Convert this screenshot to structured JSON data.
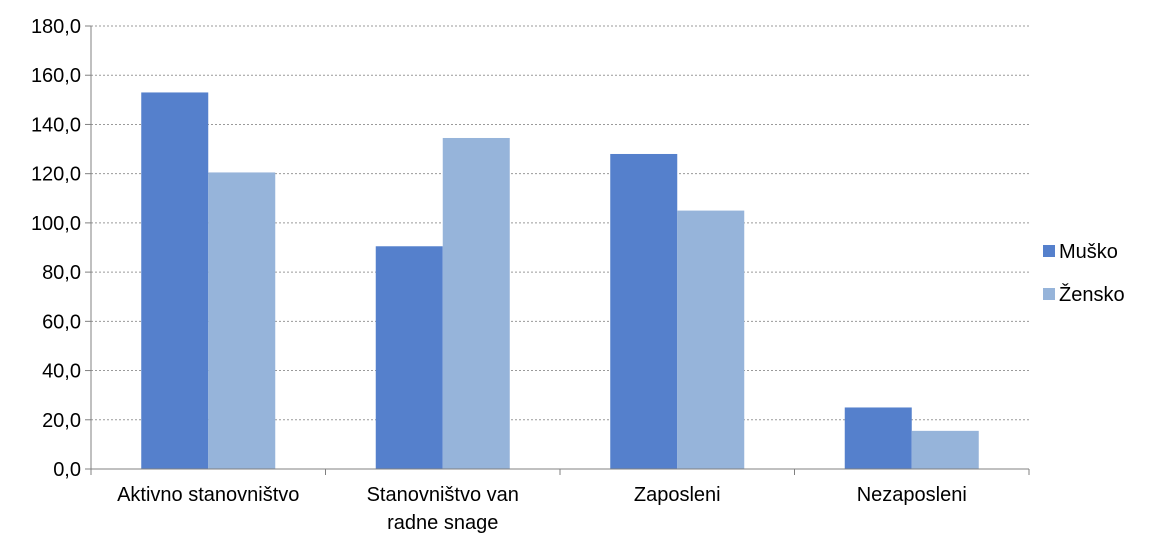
{
  "chart_data": {
    "type": "bar",
    "categories": [
      [
        "Aktivno stanovništvo"
      ],
      [
        "Stanovništvo van",
        "radne snage"
      ],
      [
        "Zaposleni"
      ],
      [
        "Nezaposleni"
      ]
    ],
    "series": [
      {
        "name": "Muško",
        "color": "#5580cc",
        "values": [
          153.0,
          90.5,
          128.0,
          25.0
        ]
      },
      {
        "name": "Žensko",
        "color": "#96b4da",
        "values": [
          120.5,
          134.5,
          105.0,
          15.5
        ]
      }
    ],
    "ylim": [
      0,
      180
    ],
    "yticks": [
      "0,0",
      "20,0",
      "40,0",
      "60,0",
      "80,0",
      "100,0",
      "120,0",
      "140,0",
      "160,0",
      "180,0"
    ],
    "grid": true,
    "legend_position": "right"
  }
}
